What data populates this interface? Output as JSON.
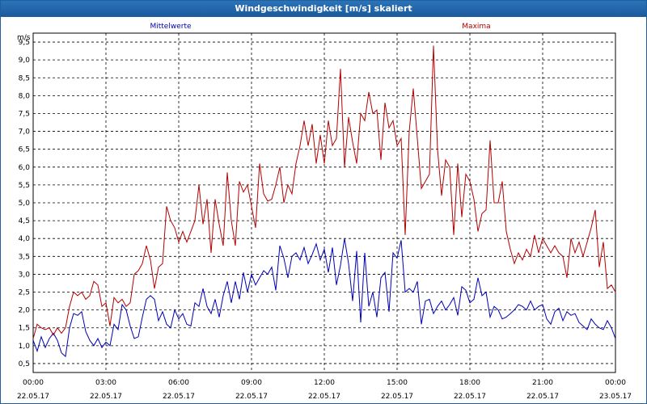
{
  "window": {
    "title": "Windgeschwindigkeit [m/s] skaliert"
  },
  "colors": {
    "titlebar": "#1f63a8",
    "series_mean": "#0000b4",
    "series_max": "#b40000",
    "grid": "#000000"
  },
  "chart_data": {
    "type": "line",
    "title": "Windgeschwindigkeit [m/s] skaliert",
    "ylabel": "m/s",
    "ylim": [
      0.25,
      9.75
    ],
    "y_ticks": [
      "0,5",
      "1,0",
      "1,5",
      "2,0",
      "2,5",
      "3,0",
      "3,5",
      "4,0",
      "4,5",
      "5,0",
      "5,5",
      "6,0",
      "6,5",
      "7,0",
      "7,5",
      "8,0",
      "8,5",
      "9,0",
      "9,5"
    ],
    "x_range_hours": [
      0,
      24
    ],
    "x_ticks": [
      {
        "time": "00:00",
        "date": "22.05.17"
      },
      {
        "time": "03:00",
        "date": "22.05.17"
      },
      {
        "time": "06:00",
        "date": "22.05.17"
      },
      {
        "time": "09:00",
        "date": "22.05.17"
      },
      {
        "time": "12:00",
        "date": "22.05.17"
      },
      {
        "time": "15:00",
        "date": "22.05.17"
      },
      {
        "time": "18:00",
        "date": "22.05.17"
      },
      {
        "time": "21:00",
        "date": "22.05.17"
      },
      {
        "time": "00:00",
        "date": "23.05.17"
      }
    ],
    "grid": true,
    "series": [
      {
        "name": "Mittelwerte",
        "legend_position": "top-left",
        "points": [
          [
            0,
            1.15
          ],
          [
            0.25,
            0.85
          ],
          [
            0.5,
            1.25
          ],
          [
            0.75,
            0.95
          ],
          [
            1,
            1.2
          ],
          [
            1.25,
            1.35
          ],
          [
            1.5,
            1.15
          ],
          [
            1.75,
            0.8
          ],
          [
            2,
            0.7
          ],
          [
            2.25,
            1.5
          ],
          [
            2.5,
            1.9
          ],
          [
            2.75,
            1.85
          ],
          [
            3,
            1.95
          ],
          [
            3.25,
            1.4
          ],
          [
            3.5,
            1.15
          ],
          [
            3.75,
            1.0
          ],
          [
            4,
            1.2
          ],
          [
            4.25,
            0.95
          ],
          [
            4.5,
            1.1
          ],
          [
            4.75,
            1.0
          ],
          [
            5,
            1.6
          ],
          [
            5.25,
            1.45
          ],
          [
            5.5,
            2.15
          ],
          [
            5.75,
            2.0
          ],
          [
            6,
            1.55
          ],
          [
            6.25,
            1.2
          ],
          [
            6.5,
            1.25
          ],
          [
            6.75,
            1.8
          ],
          [
            7,
            2.3
          ],
          [
            7.25,
            2.4
          ],
          [
            7.5,
            2.3
          ],
          [
            7.75,
            1.7
          ],
          [
            8,
            1.95
          ],
          [
            8.25,
            1.6
          ],
          [
            8.5,
            1.5
          ],
          [
            8.75,
            2.0
          ],
          [
            9,
            1.75
          ],
          [
            9.25,
            1.9
          ],
          [
            9.5,
            1.6
          ],
          [
            9.75,
            1.55
          ],
          [
            10,
            2.2
          ],
          [
            10.25,
            2.1
          ],
          [
            10.5,
            2.6
          ],
          [
            10.75,
            2.1
          ],
          [
            11,
            1.9
          ],
          [
            11.25,
            2.3
          ],
          [
            11.5,
            1.8
          ],
          [
            11.75,
            2.4
          ],
          [
            12,
            2.8
          ],
          [
            12.25,
            2.2
          ],
          [
            12.5,
            2.8
          ],
          [
            12.75,
            2.3
          ],
          [
            13,
            3.05
          ],
          [
            13.25,
            2.5
          ],
          [
            13.5,
            3.0
          ],
          [
            13.75,
            2.7
          ],
          [
            14,
            2.9
          ],
          [
            14.25,
            3.1
          ],
          [
            14.5,
            3.0
          ],
          [
            14.75,
            3.2
          ],
          [
            15,
            2.55
          ],
          [
            15.25,
            3.8
          ],
          [
            15.5,
            3.45
          ],
          [
            15.75,
            2.9
          ],
          [
            16,
            3.5
          ],
          [
            16.25,
            3.6
          ],
          [
            16.5,
            3.4
          ],
          [
            16.75,
            3.75
          ],
          [
            17,
            3.3
          ],
          [
            17.25,
            3.55
          ],
          [
            17.5,
            3.85
          ],
          [
            17.75,
            3.4
          ],
          [
            18,
            3.7
          ],
          [
            18.25,
            3.05
          ],
          [
            18.5,
            3.75
          ],
          [
            18.75,
            2.7
          ],
          [
            19,
            3.25
          ],
          [
            19.25,
            4.0
          ],
          [
            19.5,
            3.3
          ],
          [
            19.75,
            2.25
          ],
          [
            20,
            3.65
          ],
          [
            20.25,
            1.65
          ],
          [
            20.5,
            3.6
          ],
          [
            20.75,
            2.1
          ],
          [
            21,
            2.5
          ],
          [
            21.25,
            1.8
          ],
          [
            21.5,
            2.9
          ],
          [
            21.75,
            3.05
          ],
          [
            22,
            1.95
          ],
          [
            22.25,
            3.6
          ],
          [
            22.5,
            3.45
          ],
          [
            22.75,
            3.95
          ],
          [
            23,
            2.5
          ],
          [
            23.25,
            2.6
          ],
          [
            23.5,
            2.5
          ],
          [
            23.75,
            2.8
          ],
          [
            24,
            1.6
          ],
          [
            24.25,
            2.25
          ],
          [
            24.5,
            2.3
          ],
          [
            24.75,
            1.9
          ],
          [
            25,
            2.1
          ],
          [
            25.25,
            2.25
          ],
          [
            25.5,
            2.0
          ],
          [
            25.75,
            2.15
          ],
          [
            26,
            2.35
          ],
          [
            26.25,
            1.85
          ],
          [
            26.5,
            2.65
          ],
          [
            26.75,
            2.55
          ],
          [
            27,
            2.2
          ],
          [
            27.25,
            2.3
          ],
          [
            27.5,
            2.9
          ],
          [
            27.75,
            2.4
          ],
          [
            28,
            2.5
          ],
          [
            28.25,
            1.8
          ],
          [
            28.5,
            2.1
          ],
          [
            28.75,
            2.0
          ],
          [
            29,
            1.75
          ],
          [
            29.25,
            1.8
          ],
          [
            29.5,
            1.9
          ],
          [
            29.75,
            2.0
          ],
          [
            30,
            2.15
          ],
          [
            30.25,
            2.1
          ],
          [
            30.5,
            2.0
          ],
          [
            30.75,
            2.25
          ],
          [
            31,
            2.0
          ],
          [
            31.25,
            2.1
          ],
          [
            31.5,
            2.15
          ],
          [
            31.75,
            1.75
          ],
          [
            32,
            1.6
          ],
          [
            32.25,
            1.95
          ],
          [
            32.5,
            2.05
          ],
          [
            32.75,
            1.7
          ],
          [
            33,
            1.95
          ],
          [
            33.25,
            1.85
          ],
          [
            33.5,
            1.9
          ],
          [
            33.75,
            1.65
          ],
          [
            34,
            1.55
          ],
          [
            34.25,
            1.45
          ],
          [
            34.5,
            1.75
          ],
          [
            34.75,
            1.6
          ],
          [
            35,
            1.5
          ],
          [
            35.25,
            1.45
          ],
          [
            35.5,
            1.7
          ],
          [
            35.75,
            1.5
          ],
          [
            36,
            1.2
          ]
        ]
      },
      {
        "name": "Maxima",
        "legend_position": "top-right",
        "points": [
          [
            0,
            1.2
          ],
          [
            0.25,
            1.6
          ],
          [
            0.5,
            1.5
          ],
          [
            0.75,
            1.45
          ],
          [
            1,
            1.5
          ],
          [
            1.25,
            1.3
          ],
          [
            1.5,
            1.5
          ],
          [
            1.75,
            1.35
          ],
          [
            2,
            1.5
          ],
          [
            2.25,
            2.1
          ],
          [
            2.5,
            2.5
          ],
          [
            2.75,
            2.4
          ],
          [
            3,
            2.5
          ],
          [
            3.25,
            2.3
          ],
          [
            3.5,
            2.4
          ],
          [
            3.75,
            2.8
          ],
          [
            4,
            2.7
          ],
          [
            4.25,
            2.1
          ],
          [
            4.5,
            2.2
          ],
          [
            4.75,
            1.55
          ],
          [
            5,
            2.35
          ],
          [
            5.25,
            2.2
          ],
          [
            5.5,
            2.3
          ],
          [
            5.75,
            2.1
          ],
          [
            6,
            2.2
          ],
          [
            6.25,
            3.0
          ],
          [
            6.5,
            3.1
          ],
          [
            6.75,
            3.3
          ],
          [
            7,
            3.8
          ],
          [
            7.25,
            3.4
          ],
          [
            7.5,
            2.6
          ],
          [
            7.75,
            3.2
          ],
          [
            8,
            3.3
          ],
          [
            8.25,
            4.9
          ],
          [
            8.5,
            4.5
          ],
          [
            8.75,
            4.3
          ],
          [
            9,
            3.9
          ],
          [
            9.25,
            4.2
          ],
          [
            9.5,
            3.9
          ],
          [
            9.75,
            4.2
          ],
          [
            10,
            4.5
          ],
          [
            10.25,
            5.5
          ],
          [
            10.5,
            4.4
          ],
          [
            10.75,
            5.1
          ],
          [
            11,
            3.6
          ],
          [
            11.25,
            5.1
          ],
          [
            11.5,
            4.4
          ],
          [
            11.75,
            3.8
          ],
          [
            12,
            5.85
          ],
          [
            12.25,
            4.5
          ],
          [
            12.5,
            3.8
          ],
          [
            12.75,
            5.6
          ],
          [
            13,
            5.3
          ],
          [
            13.25,
            5.5
          ],
          [
            13.75,
            4.3
          ],
          [
            14,
            6.1
          ],
          [
            14.25,
            5.25
          ],
          [
            14.5,
            5.05
          ],
          [
            14.75,
            5.1
          ],
          [
            15,
            5.5
          ],
          [
            15.25,
            6.0
          ],
          [
            15.5,
            5.0
          ],
          [
            15.75,
            5.5
          ],
          [
            16,
            5.25
          ],
          [
            16.25,
            6.1
          ],
          [
            16.5,
            6.6
          ],
          [
            16.75,
            7.3
          ],
          [
            17,
            6.6
          ],
          [
            17.25,
            7.2
          ],
          [
            17.5,
            6.1
          ],
          [
            17.75,
            6.9
          ],
          [
            18,
            6.1
          ],
          [
            18.25,
            7.3
          ],
          [
            18.5,
            6.6
          ],
          [
            18.75,
            6.8
          ],
          [
            19,
            8.75
          ],
          [
            19.25,
            6.0
          ],
          [
            19.5,
            7.4
          ],
          [
            19.75,
            6.7
          ],
          [
            20,
            6.1
          ],
          [
            20.25,
            7.5
          ],
          [
            20.5,
            7.3
          ],
          [
            20.75,
            8.1
          ],
          [
            21,
            7.5
          ],
          [
            21.25,
            7.6
          ],
          [
            21.5,
            6.2
          ],
          [
            21.75,
            7.8
          ],
          [
            22,
            7.1
          ],
          [
            22.25,
            7.3
          ],
          [
            22.5,
            6.6
          ],
          [
            22.75,
            6.8
          ],
          [
            23,
            4.1
          ],
          [
            23.25,
            7.0
          ],
          [
            23.5,
            8.2
          ],
          [
            23.75,
            6.8
          ],
          [
            24,
            5.4
          ],
          [
            24.25,
            5.6
          ],
          [
            24.5,
            5.8
          ],
          [
            24.75,
            9.4
          ],
          [
            25,
            6.5
          ],
          [
            25.25,
            5.2
          ],
          [
            25.5,
            6.2
          ],
          [
            25.75,
            6.0
          ],
          [
            26,
            4.1
          ],
          [
            26.25,
            6.1
          ],
          [
            26.5,
            4.6
          ],
          [
            26.75,
            5.8
          ],
          [
            27,
            5.6
          ],
          [
            27.25,
            5.1
          ],
          [
            27.5,
            4.2
          ],
          [
            27.75,
            4.7
          ],
          [
            28,
            4.8
          ],
          [
            28.25,
            6.75
          ],
          [
            28.5,
            5.0
          ],
          [
            28.75,
            5.0
          ],
          [
            29,
            5.6
          ],
          [
            29.25,
            4.2
          ],
          [
            29.5,
            3.7
          ],
          [
            29.75,
            3.3
          ],
          [
            30,
            3.6
          ],
          [
            30.25,
            3.4
          ],
          [
            30.5,
            3.7
          ],
          [
            30.75,
            3.5
          ],
          [
            31,
            4.1
          ],
          [
            31.25,
            3.6
          ],
          [
            31.5,
            4.0
          ],
          [
            31.75,
            3.8
          ],
          [
            32,
            3.6
          ],
          [
            32.25,
            3.8
          ],
          [
            32.5,
            3.6
          ],
          [
            32.75,
            3.5
          ],
          [
            33,
            2.9
          ],
          [
            33.25,
            4.0
          ],
          [
            33.5,
            3.6
          ],
          [
            33.75,
            3.9
          ],
          [
            34,
            3.5
          ],
          [
            34.25,
            3.9
          ],
          [
            34.5,
            4.3
          ],
          [
            34.75,
            4.8
          ],
          [
            35,
            3.2
          ],
          [
            35.25,
            3.9
          ],
          [
            35.5,
            2.6
          ],
          [
            35.75,
            2.7
          ],
          [
            36,
            2.5
          ]
        ]
      }
    ]
  }
}
